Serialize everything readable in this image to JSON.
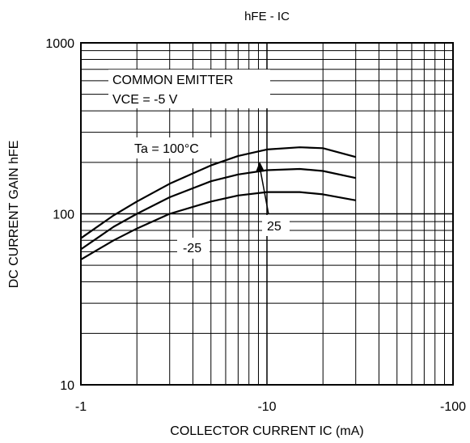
{
  "chart_data": {
    "type": "line",
    "title": "hFE - IC",
    "xlabel": "COLLECTOR CURRENT   IC (mA)",
    "ylabel": "DC CURRENT GAIN   hFE",
    "x_scale": "log",
    "y_scale": "log",
    "x_ticks": [
      {
        "value": 1,
        "label": "-1"
      },
      {
        "value": 10,
        "label": "-10"
      },
      {
        "value": 100,
        "label": "-100"
      }
    ],
    "y_ticks": [
      {
        "value": 10,
        "label": "10"
      },
      {
        "value": 100,
        "label": "100"
      },
      {
        "value": 1000,
        "label": "1000"
      }
    ],
    "xlim": [
      1,
      100
    ],
    "ylim": [
      10,
      1000
    ],
    "grid": true,
    "annotations": {
      "condition_1": "COMMON EMITTER",
      "condition_2": "VCE = -5 V"
    },
    "series": [
      {
        "name": "Ta = 100°C",
        "x": [
          1,
          1.5,
          2,
          3,
          5,
          7,
          10,
          15,
          20,
          30
        ],
        "y": [
          72,
          98,
          118,
          150,
          192,
          218,
          238,
          245,
          242,
          215
        ]
      },
      {
        "name": "25",
        "x": [
          1,
          1.5,
          2,
          3,
          5,
          7,
          10,
          15,
          20,
          30
        ],
        "y": [
          62,
          84,
          100,
          125,
          155,
          170,
          180,
          183,
          178,
          162
        ]
      },
      {
        "name": "-25",
        "x": [
          1,
          1.5,
          2,
          3,
          5,
          7,
          10,
          15,
          20,
          30
        ],
        "y": [
          54,
          70,
          82,
          100,
          118,
          128,
          134,
          134,
          130,
          120
        ]
      }
    ]
  }
}
